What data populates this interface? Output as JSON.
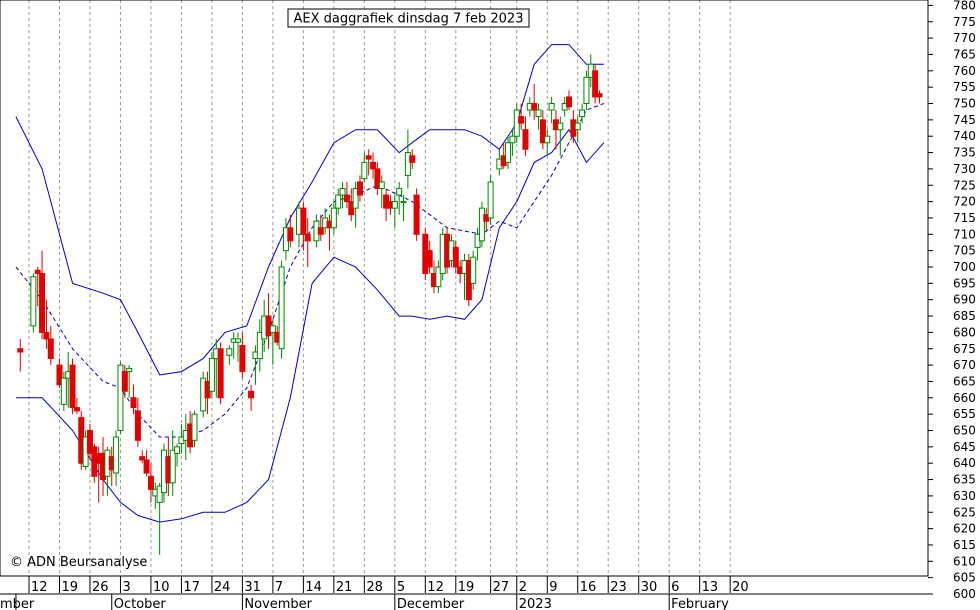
{
  "chart_data": {
    "type": "candlestick",
    "title": "AEX daggrafiek dinsdag 7 feb 2023",
    "copyright": "© ADN Beursanalyse",
    "ylim": [
      600,
      780
    ],
    "y_ticks": [
      600,
      605,
      610,
      615,
      620,
      625,
      630,
      635,
      640,
      645,
      650,
      655,
      660,
      665,
      670,
      675,
      680,
      685,
      690,
      695,
      700,
      705,
      710,
      715,
      720,
      725,
      730,
      735,
      740,
      745,
      750,
      755,
      760,
      765,
      770,
      775,
      780
    ],
    "x_ticks": [
      {
        "label": "12",
        "day": 0
      },
      {
        "label": "19",
        "day": 7
      },
      {
        "label": "26",
        "day": 14
      },
      {
        "label": "3",
        "day": 21
      },
      {
        "label": "10",
        "day": 28
      },
      {
        "label": "17",
        "day": 35
      },
      {
        "label": "24",
        "day": 42
      },
      {
        "label": "31",
        "day": 49
      },
      {
        "label": "7",
        "day": 56
      },
      {
        "label": "14",
        "day": 63
      },
      {
        "label": "21",
        "day": 70
      },
      {
        "label": "28",
        "day": 77
      },
      {
        "label": "5",
        "day": 84
      },
      {
        "label": "12",
        "day": 91
      },
      {
        "label": "19",
        "day": 98
      },
      {
        "label": "27",
        "day": 106
      },
      {
        "label": "2",
        "day": 112
      },
      {
        "label": "9",
        "day": 119
      },
      {
        "label": "16",
        "day": 126
      },
      {
        "label": "23",
        "day": 133
      },
      {
        "label": "30",
        "day": 140
      },
      {
        "label": "6",
        "day": 147
      },
      {
        "label": "13",
        "day": 154
      },
      {
        "label": "20",
        "day": 161
      }
    ],
    "months": [
      {
        "label": "mber",
        "day": -3
      },
      {
        "label": "October",
        "day": 19
      },
      {
        "label": "November",
        "day": 49
      },
      {
        "label": "December",
        "day": 84
      },
      {
        "label": "2023",
        "day": 112
      },
      {
        "label": "February",
        "day": 147
      }
    ],
    "candles": [
      {
        "day": -2,
        "o": 675,
        "h": 678,
        "l": 668,
        "c": 674
      },
      {
        "day": 1,
        "o": 682,
        "h": 698,
        "l": 680,
        "c": 697
      },
      {
        "day": 2,
        "o": 699,
        "h": 700,
        "l": 688,
        "c": 698
      },
      {
        "day": 3,
        "o": 698,
        "h": 705,
        "l": 678,
        "c": 680
      },
      {
        "day": 4,
        "o": 680,
        "h": 690,
        "l": 675,
        "c": 678
      },
      {
        "day": 5,
        "o": 678,
        "h": 682,
        "l": 670,
        "c": 672
      },
      {
        "day": 7,
        "o": 670,
        "h": 672,
        "l": 663,
        "c": 664
      },
      {
        "day": 8,
        "o": 658,
        "h": 668,
        "l": 656,
        "c": 666
      },
      {
        "day": 9,
        "o": 666,
        "h": 674,
        "l": 657,
        "c": 668
      },
      {
        "day": 10,
        "o": 670,
        "h": 672,
        "l": 655,
        "c": 657
      },
      {
        "day": 11,
        "o": 657,
        "h": 660,
        "l": 655,
        "c": 656
      },
      {
        "day": 12,
        "o": 654,
        "h": 656,
        "l": 638,
        "c": 640
      },
      {
        "day": 13,
        "o": 639,
        "h": 650,
        "l": 638,
        "c": 648
      },
      {
        "day": 14,
        "o": 650,
        "h": 652,
        "l": 641,
        "c": 643
      },
      {
        "day": 15,
        "o": 645,
        "h": 646,
        "l": 634,
        "c": 636
      },
      {
        "day": 16,
        "o": 643,
        "h": 645,
        "l": 628,
        "c": 640
      },
      {
        "day": 17,
        "o": 643,
        "h": 648,
        "l": 630,
        "c": 635
      },
      {
        "day": 18,
        "o": 636,
        "h": 645,
        "l": 630,
        "c": 644
      },
      {
        "day": 19,
        "o": 642,
        "h": 645,
        "l": 633,
        "c": 638
      },
      {
        "day": 20,
        "o": 637,
        "h": 650,
        "l": 633,
        "c": 648
      },
      {
        "day": 21,
        "o": 650,
        "h": 671,
        "l": 649,
        "c": 670
      },
      {
        "day": 22,
        "o": 668,
        "h": 670,
        "l": 660,
        "c": 662
      },
      {
        "day": 23,
        "o": 668,
        "h": 670,
        "l": 660,
        "c": 669
      },
      {
        "day": 24,
        "o": 660,
        "h": 664,
        "l": 655,
        "c": 657
      },
      {
        "day": 25,
        "o": 656,
        "h": 660,
        "l": 645,
        "c": 647
      },
      {
        "day": 26,
        "o": 642,
        "h": 644,
        "l": 640,
        "c": 641
      },
      {
        "day": 27,
        "o": 641,
        "h": 644,
        "l": 636,
        "c": 637
      },
      {
        "day": 28,
        "o": 636,
        "h": 640,
        "l": 628,
        "c": 632
      },
      {
        "day": 29,
        "o": 630,
        "h": 634,
        "l": 626,
        "c": 632
      },
      {
        "day": 30,
        "o": 628,
        "h": 634,
        "l": 612,
        "c": 633
      },
      {
        "day": 31,
        "o": 631,
        "h": 646,
        "l": 628,
        "c": 644
      },
      {
        "day": 32,
        "o": 642,
        "h": 648,
        "l": 630,
        "c": 634
      },
      {
        "day": 33,
        "o": 634,
        "h": 650,
        "l": 630,
        "c": 644
      },
      {
        "day": 34,
        "o": 643,
        "h": 646,
        "l": 639,
        "c": 645
      },
      {
        "day": 35,
        "o": 646,
        "h": 652,
        "l": 643,
        "c": 648
      },
      {
        "day": 36,
        "o": 647,
        "h": 655,
        "l": 641,
        "c": 650
      },
      {
        "day": 37,
        "o": 652,
        "h": 656,
        "l": 643,
        "c": 645
      },
      {
        "day": 38,
        "o": 647,
        "h": 656,
        "l": 645,
        "c": 655
      },
      {
        "day": 40,
        "o": 656,
        "h": 668,
        "l": 654,
        "c": 666
      },
      {
        "day": 41,
        "o": 665,
        "h": 668,
        "l": 655,
        "c": 660
      },
      {
        "day": 42,
        "o": 662,
        "h": 674,
        "l": 660,
        "c": 672
      },
      {
        "day": 43,
        "o": 672,
        "h": 678,
        "l": 660,
        "c": 675
      },
      {
        "day": 44,
        "o": 675,
        "h": 677,
        "l": 658,
        "c": 660
      },
      {
        "day": 46,
        "o": 673,
        "h": 676,
        "l": 670,
        "c": 675
      },
      {
        "day": 47,
        "o": 677,
        "h": 680,
        "l": 672,
        "c": 678
      },
      {
        "day": 48,
        "o": 677,
        "h": 680,
        "l": 671,
        "c": 678
      },
      {
        "day": 49,
        "o": 676,
        "h": 680,
        "l": 666,
        "c": 668
      },
      {
        "day": 51,
        "o": 662,
        "h": 664,
        "l": 656,
        "c": 660
      },
      {
        "day": 52,
        "o": 672,
        "h": 676,
        "l": 664,
        "c": 674
      },
      {
        "day": 53,
        "o": 672,
        "h": 684,
        "l": 668,
        "c": 680
      },
      {
        "day": 54,
        "o": 678,
        "h": 690,
        "l": 674,
        "c": 685
      },
      {
        "day": 55,
        "o": 685,
        "h": 692,
        "l": 675,
        "c": 679
      },
      {
        "day": 56,
        "o": 680,
        "h": 684,
        "l": 670,
        "c": 682
      },
      {
        "day": 57,
        "o": 680,
        "h": 682,
        "l": 676,
        "c": 677
      },
      {
        "day": 58,
        "o": 675,
        "h": 702,
        "l": 672,
        "c": 700
      },
      {
        "day": 59,
        "o": 705,
        "h": 715,
        "l": 702,
        "c": 712
      },
      {
        "day": 60,
        "o": 712,
        "h": 716,
        "l": 706,
        "c": 708
      },
      {
        "day": 62,
        "o": 710,
        "h": 720,
        "l": 706,
        "c": 718
      },
      {
        "day": 63,
        "o": 718,
        "h": 720,
        "l": 705,
        "c": 710
      },
      {
        "day": 64,
        "o": 710,
        "h": 715,
        "l": 700,
        "c": 708
      },
      {
        "day": 66,
        "o": 708,
        "h": 716,
        "l": 706,
        "c": 714
      },
      {
        "day": 67,
        "o": 712,
        "h": 716,
        "l": 708,
        "c": 710
      },
      {
        "day": 68,
        "o": 712,
        "h": 718,
        "l": 710,
        "c": 715
      },
      {
        "day": 69,
        "o": 714,
        "h": 716,
        "l": 705,
        "c": 712
      },
      {
        "day": 70,
        "o": 712,
        "h": 720,
        "l": 710,
        "c": 718
      },
      {
        "day": 71,
        "o": 718,
        "h": 724,
        "l": 716,
        "c": 722
      },
      {
        "day": 72,
        "o": 722,
        "h": 726,
        "l": 718,
        "c": 724
      },
      {
        "day": 73,
        "o": 722,
        "h": 726,
        "l": 718,
        "c": 720
      },
      {
        "day": 74,
        "o": 720,
        "h": 724,
        "l": 714,
        "c": 716
      },
      {
        "day": 75,
        "o": 718,
        "h": 726,
        "l": 712,
        "c": 724
      },
      {
        "day": 76,
        "o": 726,
        "h": 728,
        "l": 720,
        "c": 722
      },
      {
        "day": 77,
        "o": 727,
        "h": 735,
        "l": 726,
        "c": 732
      },
      {
        "day": 78,
        "o": 734,
        "h": 736,
        "l": 728,
        "c": 733
      },
      {
        "day": 79,
        "o": 732,
        "h": 735,
        "l": 727,
        "c": 730
      },
      {
        "day": 80,
        "o": 730,
        "h": 732,
        "l": 722,
        "c": 724
      },
      {
        "day": 81,
        "o": 724,
        "h": 728,
        "l": 718,
        "c": 726
      },
      {
        "day": 82,
        "o": 722,
        "h": 724,
        "l": 714,
        "c": 718
      },
      {
        "day": 83,
        "o": 720,
        "h": 722,
        "l": 716,
        "c": 718
      },
      {
        "day": 84,
        "o": 718,
        "h": 722,
        "l": 712,
        "c": 720
      },
      {
        "day": 85,
        "o": 722,
        "h": 726,
        "l": 716,
        "c": 724
      },
      {
        "day": 86,
        "o": 720,
        "h": 722,
        "l": 714,
        "c": 720
      },
      {
        "day": 87,
        "o": 728,
        "h": 742,
        "l": 724,
        "c": 735
      },
      {
        "day": 88,
        "o": 734,
        "h": 736,
        "l": 730,
        "c": 732
      },
      {
        "day": 89,
        "o": 722,
        "h": 724,
        "l": 708,
        "c": 710
      },
      {
        "day": 91,
        "o": 710,
        "h": 712,
        "l": 696,
        "c": 698
      },
      {
        "day": 92,
        "o": 705,
        "h": 708,
        "l": 698,
        "c": 700
      },
      {
        "day": 93,
        "o": 698,
        "h": 702,
        "l": 692,
        "c": 694
      },
      {
        "day": 94,
        "o": 694,
        "h": 702,
        "l": 692,
        "c": 700
      },
      {
        "day": 95,
        "o": 698,
        "h": 712,
        "l": 696,
        "c": 710
      },
      {
        "day": 96,
        "o": 710,
        "h": 712,
        "l": 698,
        "c": 700
      },
      {
        "day": 97,
        "o": 702,
        "h": 710,
        "l": 700,
        "c": 708
      },
      {
        "day": 98,
        "o": 706,
        "h": 708,
        "l": 698,
        "c": 700
      },
      {
        "day": 99,
        "o": 700,
        "h": 702,
        "l": 695,
        "c": 698
      },
      {
        "day": 100,
        "o": 698,
        "h": 704,
        "l": 690,
        "c": 702
      },
      {
        "day": 101,
        "o": 702,
        "h": 704,
        "l": 688,
        "c": 690
      },
      {
        "day": 102,
        "o": 695,
        "h": 705,
        "l": 693,
        "c": 703
      },
      {
        "day": 103,
        "o": 706,
        "h": 712,
        "l": 702,
        "c": 710
      },
      {
        "day": 104,
        "o": 708,
        "h": 720,
        "l": 706,
        "c": 718
      },
      {
        "day": 105,
        "o": 716,
        "h": 718,
        "l": 711,
        "c": 714
      },
      {
        "day": 106,
        "o": 715,
        "h": 728,
        "l": 713,
        "c": 726
      },
      {
        "day": 108,
        "o": 730,
        "h": 736,
        "l": 728,
        "c": 733
      },
      {
        "day": 109,
        "o": 734,
        "h": 738,
        "l": 730,
        "c": 731
      },
      {
        "day": 110,
        "o": 732,
        "h": 740,
        "l": 730,
        "c": 738
      },
      {
        "day": 111,
        "o": 738,
        "h": 742,
        "l": 734,
        "c": 740
      },
      {
        "day": 112,
        "o": 740,
        "h": 750,
        "l": 738,
        "c": 748
      },
      {
        "day": 113,
        "o": 746,
        "h": 750,
        "l": 742,
        "c": 744
      },
      {
        "day": 114,
        "o": 742,
        "h": 746,
        "l": 734,
        "c": 736
      },
      {
        "day": 115,
        "o": 748,
        "h": 752,
        "l": 746,
        "c": 750
      },
      {
        "day": 116,
        "o": 750,
        "h": 756,
        "l": 745,
        "c": 748
      },
      {
        "day": 117,
        "o": 746,
        "h": 750,
        "l": 742,
        "c": 748
      },
      {
        "day": 118,
        "o": 745,
        "h": 748,
        "l": 736,
        "c": 738
      },
      {
        "day": 119,
        "o": 738,
        "h": 742,
        "l": 734,
        "c": 740
      },
      {
        "day": 120,
        "o": 748,
        "h": 752,
        "l": 744,
        "c": 750
      },
      {
        "day": 121,
        "o": 745,
        "h": 748,
        "l": 736,
        "c": 742
      },
      {
        "day": 122,
        "o": 742,
        "h": 746,
        "l": 734,
        "c": 744
      },
      {
        "day": 123,
        "o": 748,
        "h": 752,
        "l": 746,
        "c": 750
      },
      {
        "day": 124,
        "o": 752,
        "h": 754,
        "l": 748,
        "c": 749
      },
      {
        "day": 125,
        "o": 745,
        "h": 748,
        "l": 738,
        "c": 740
      },
      {
        "day": 126,
        "o": 742,
        "h": 746,
        "l": 738,
        "c": 744
      },
      {
        "day": 127,
        "o": 746,
        "h": 750,
        "l": 744,
        "c": 748
      },
      {
        "day": 128,
        "o": 750,
        "h": 760,
        "l": 748,
        "c": 758
      },
      {
        "day": 129,
        "o": 758,
        "h": 765,
        "l": 755,
        "c": 762
      },
      {
        "day": 130,
        "o": 760,
        "h": 762,
        "l": 750,
        "c": 752
      },
      {
        "day": 131,
        "o": 753,
        "h": 754,
        "l": 750,
        "c": 752
      }
    ],
    "bands": {
      "days": [
        -3,
        3,
        10,
        17,
        21,
        25,
        30,
        35,
        40,
        45,
        50,
        55,
        60,
        65,
        70,
        75,
        80,
        85,
        88,
        92,
        96,
        100,
        104,
        108,
        112,
        116,
        120,
        124,
        128,
        132
      ],
      "upper": [
        746,
        730,
        695,
        692,
        690,
        680,
        667,
        668,
        672,
        680,
        682,
        700,
        715,
        726,
        738,
        742,
        742,
        735,
        738,
        742,
        742,
        742,
        740,
        736,
        744,
        762,
        768,
        768,
        762,
        762
      ],
      "middle": [
        700,
        690,
        675,
        665,
        663,
        655,
        648,
        648,
        650,
        655,
        663,
        680,
        700,
        712,
        720,
        722,
        725,
        722,
        720,
        716,
        712,
        711,
        710,
        714,
        712,
        720,
        728,
        738,
        748,
        750
      ],
      "lower": [
        660,
        660,
        650,
        635,
        628,
        624,
        622,
        623,
        625,
        625,
        628,
        635,
        660,
        695,
        703,
        700,
        693,
        685,
        685,
        684,
        685,
        684,
        690,
        712,
        720,
        732,
        735,
        742,
        732,
        738
      ]
    }
  }
}
